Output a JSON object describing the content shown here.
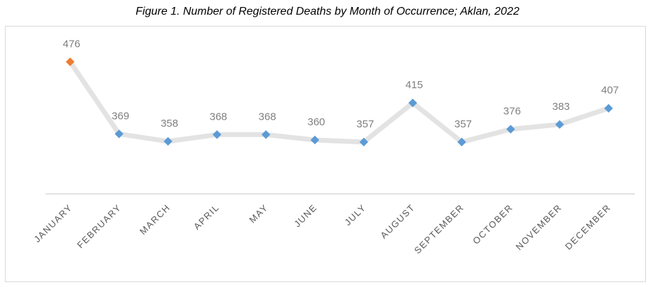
{
  "title": "Figure 1. Number of Registered Deaths by Month of Occurrence; Aklan, 2022",
  "colors": {
    "line": "#e3e3e3",
    "marker": "#5b9bd5",
    "highlight_marker": "#ed7d31",
    "axis": "#d9d9d9",
    "data_label": "#7f7f7f",
    "tick_label": "#595959"
  },
  "chart_data": {
    "type": "line",
    "title": "Figure 1. Number of Registered Deaths by Month of Occurrence; Aklan, 2022",
    "categories": [
      "JANUARY",
      "FEBRUARY",
      "MARCH",
      "APRIL",
      "MAY",
      "JUNE",
      "JULY",
      "AUGUST",
      "SEPTEMBER",
      "OCTOBER",
      "NOVEMBER",
      "DECEMBER"
    ],
    "series": [
      {
        "values": [
          476,
          369,
          358,
          368,
          368,
          360,
          357,
          415,
          357,
          376,
          383,
          407
        ]
      }
    ],
    "highlighted_points": [
      "JANUARY"
    ],
    "ylim": [
      280,
      495
    ],
    "grid": false,
    "legend": "none",
    "xlabel": "",
    "ylabel": ""
  }
}
